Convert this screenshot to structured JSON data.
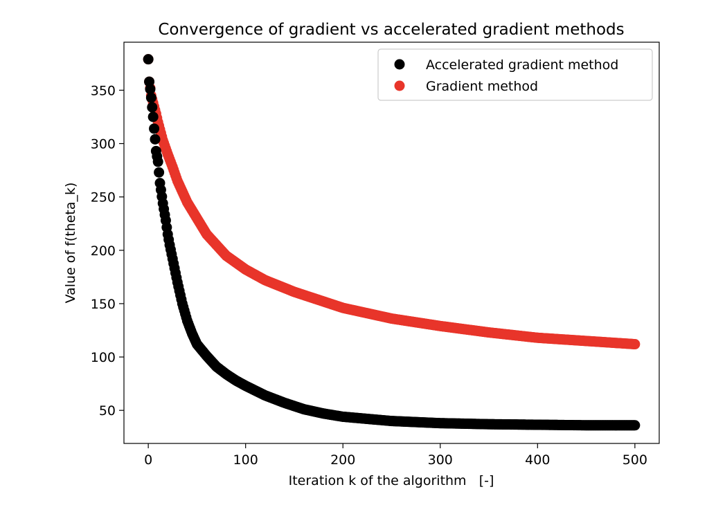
{
  "chart_data": {
    "type": "scatter",
    "title": "Convergence of gradient vs accelerated gradient methods",
    "xlabel": "Iteration k of the algorithm   [-]",
    "ylabel": "Value of f(theta_k)",
    "xlim": [
      -25,
      525
    ],
    "ylim": [
      19,
      395
    ],
    "xticks": [
      0,
      100,
      200,
      300,
      400,
      500
    ],
    "yticks": [
      50,
      100,
      150,
      200,
      250,
      300,
      350
    ],
    "grid": false,
    "legend_position": "top-right",
    "series": [
      {
        "name": "Accelerated gradient method",
        "color": "#000000",
        "points": [
          [
            0,
            379
          ],
          [
            1,
            358
          ],
          [
            2,
            351
          ],
          [
            3,
            343
          ],
          [
            4,
            334
          ],
          [
            5,
            325
          ],
          [
            6,
            314
          ],
          [
            7,
            304
          ],
          [
            8,
            293
          ],
          [
            10,
            283
          ],
          [
            12,
            263
          ],
          [
            15,
            244
          ],
          [
            18,
            228
          ],
          [
            20,
            215
          ],
          [
            22,
            205
          ],
          [
            25,
            192
          ],
          [
            30,
            170
          ],
          [
            35,
            150
          ],
          [
            40,
            134
          ],
          [
            45,
            122
          ],
          [
            50,
            112
          ],
          [
            60,
            101
          ],
          [
            70,
            91
          ],
          [
            80,
            84
          ],
          [
            90,
            78
          ],
          [
            100,
            73
          ],
          [
            120,
            64
          ],
          [
            140,
            57
          ],
          [
            160,
            51
          ],
          [
            180,
            47
          ],
          [
            200,
            44
          ],
          [
            250,
            40
          ],
          [
            300,
            38
          ],
          [
            350,
            37
          ],
          [
            400,
            36.5
          ],
          [
            450,
            36
          ],
          [
            500,
            36
          ]
        ]
      },
      {
        "name": "Gradient method",
        "color": "#e8352a",
        "points": [
          [
            0,
            379
          ],
          [
            1,
            358
          ],
          [
            2,
            352
          ],
          [
            3,
            345
          ],
          [
            5,
            338
          ],
          [
            8,
            328
          ],
          [
            10,
            320
          ],
          [
            15,
            303
          ],
          [
            20,
            290
          ],
          [
            25,
            278
          ],
          [
            30,
            265
          ],
          [
            40,
            245
          ],
          [
            50,
            230
          ],
          [
            60,
            215
          ],
          [
            70,
            205
          ],
          [
            80,
            195
          ],
          [
            100,
            182
          ],
          [
            120,
            172
          ],
          [
            150,
            161
          ],
          [
            200,
            146
          ],
          [
            250,
            136
          ],
          [
            300,
            129
          ],
          [
            350,
            123
          ],
          [
            400,
            118
          ],
          [
            450,
            115
          ],
          [
            500,
            112
          ]
        ]
      }
    ]
  }
}
